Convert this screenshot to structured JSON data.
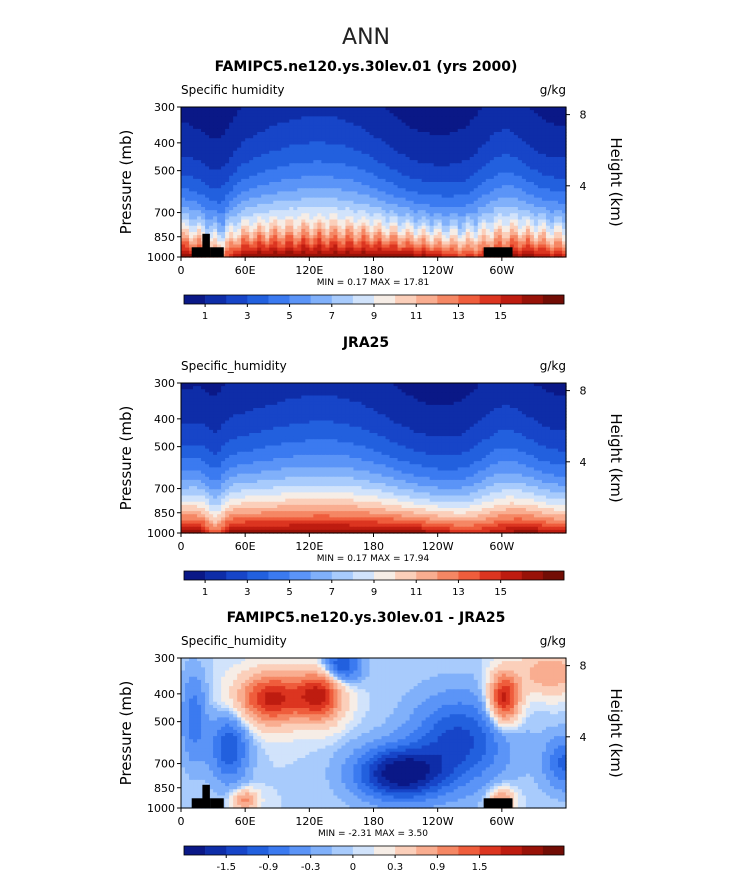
{
  "figure": {
    "title": "ANN"
  },
  "chart_data": [
    {
      "type": "heatmap",
      "title": "FAMIPC5.ne120.ys.30lev.01 (yrs 2000)",
      "var_label": "Specific humidity",
      "units": "g/kg",
      "ylabel": "Pressure (mb)",
      "ylabel_right": "Height (km)",
      "y_ticks": [
        "300",
        "400",
        "500",
        "700",
        "850",
        "1000"
      ],
      "y_tick_values": [
        300,
        400,
        500,
        700,
        850,
        1000
      ],
      "right_ticks": [
        "8",
        "4"
      ],
      "right_tick_values": [
        8,
        4
      ],
      "x_ticks": [
        "0",
        "60E",
        "120E",
        "180",
        "120W",
        "60W"
      ],
      "x_tick_values": [
        0,
        60,
        120,
        180,
        240,
        300
      ],
      "xlim": [
        0,
        360
      ],
      "ylim": [
        1000,
        300
      ],
      "stats": "MIN =     0.17   MAX =   17.81",
      "min": 0.17,
      "max": 17.81,
      "colorbar_labels": [
        "1",
        "3",
        "5",
        "7",
        "9",
        "11",
        "13",
        "15"
      ],
      "colorbar_levels": [
        0,
        1,
        2,
        3,
        4,
        5,
        6,
        7,
        8,
        9,
        10,
        11,
        12,
        13,
        14,
        15,
        16,
        17
      ],
      "colors": [
        "#0a1887",
        "#0e2da8",
        "#1745c8",
        "#2260de",
        "#3b7af0",
        "#5b94f7",
        "#80b0fa",
        "#a8cbfc",
        "#d1e3fb",
        "#f6ede6",
        "#fbcfba",
        "#f9ad90",
        "#f58764",
        "#ef5d3c",
        "#dc3520",
        "#be1c10",
        "#981208",
        "#720d05"
      ],
      "terrain": [
        {
          "lon0": 10,
          "lon1": 28,
          "p": 925
        },
        {
          "lon0": 20,
          "lon1": 27,
          "p": 830
        },
        {
          "lon0": 28,
          "lon1": 40,
          "p": 925
        },
        {
          "lon0": 283,
          "lon1": 310,
          "p": 925
        }
      ]
    },
    {
      "type": "heatmap",
      "title": "JRA25",
      "var_label": "Specific_humidity",
      "units": "g/kg",
      "ylabel": "Pressure (mb)",
      "ylabel_right": "Height (km)",
      "y_ticks": [
        "300",
        "400",
        "500",
        "700",
        "850",
        "1000"
      ],
      "y_tick_values": [
        300,
        400,
        500,
        700,
        850,
        1000
      ],
      "right_ticks": [
        "8",
        "4"
      ],
      "right_tick_values": [
        8,
        4
      ],
      "x_ticks": [
        "0",
        "60E",
        "120E",
        "180",
        "120W",
        "60W"
      ],
      "x_tick_values": [
        0,
        60,
        120,
        180,
        240,
        300
      ],
      "xlim": [
        0,
        360
      ],
      "ylim": [
        1000,
        300
      ],
      "stats": "MIN =     0.17   MAX =   17.94",
      "min": 0.17,
      "max": 17.94,
      "colorbar_labels": [
        "1",
        "3",
        "5",
        "7",
        "9",
        "11",
        "13",
        "15"
      ],
      "colorbar_levels": [
        0,
        1,
        2,
        3,
        4,
        5,
        6,
        7,
        8,
        9,
        10,
        11,
        12,
        13,
        14,
        15,
        16,
        17
      ],
      "colors": [
        "#0a1887",
        "#0e2da8",
        "#1745c8",
        "#2260de",
        "#3b7af0",
        "#5b94f7",
        "#80b0fa",
        "#a8cbfc",
        "#d1e3fb",
        "#f6ede6",
        "#fbcfba",
        "#f9ad90",
        "#f58764",
        "#ef5d3c",
        "#dc3520",
        "#be1c10",
        "#981208",
        "#720d05"
      ],
      "terrain": []
    },
    {
      "type": "heatmap",
      "title": "FAMIPC5.ne120.ys.30lev.01 - JRA25",
      "var_label": "Specific_humidity",
      "units": "g/kg",
      "ylabel": "Pressure (mb)",
      "ylabel_right": "Height (km)",
      "y_ticks": [
        "300",
        "400",
        "500",
        "700",
        "850",
        "1000"
      ],
      "y_tick_values": [
        300,
        400,
        500,
        700,
        850,
        1000
      ],
      "right_ticks": [
        "8",
        "4"
      ],
      "right_tick_values": [
        8,
        4
      ],
      "x_ticks": [
        "0",
        "60E",
        "120E",
        "180",
        "120W",
        "60W"
      ],
      "x_tick_values": [
        0,
        60,
        120,
        180,
        240,
        300
      ],
      "xlim": [
        0,
        360
      ],
      "ylim": [
        1000,
        300
      ],
      "stats": "MIN =    -2.31   MAX =    3.50",
      "min": -2.31,
      "max": 3.5,
      "colorbar_labels": [
        "-1.5",
        "-0.9",
        "-0.3",
        "0",
        "0.3",
        "0.9",
        "1.5"
      ],
      "colorbar_levels": [
        -2.1,
        -1.8,
        -1.5,
        -1.2,
        -0.9,
        -0.6,
        -0.3,
        -0.1,
        0,
        0.1,
        0.3,
        0.6,
        0.9,
        1.2,
        1.5,
        1.8,
        2.1,
        2.4
      ],
      "colors": [
        "#0a1887",
        "#0e2da8",
        "#1745c8",
        "#2260de",
        "#3b7af0",
        "#5b94f7",
        "#80b0fa",
        "#a8cbfc",
        "#d1e3fb",
        "#f6ede6",
        "#fbcfba",
        "#f9ad90",
        "#f58764",
        "#ef5d3c",
        "#dc3520",
        "#be1c10",
        "#981208",
        "#720d05"
      ],
      "terrain": [
        {
          "lon0": 10,
          "lon1": 28,
          "p": 925
        },
        {
          "lon0": 20,
          "lon1": 27,
          "p": 830
        },
        {
          "lon0": 28,
          "lon1": 40,
          "p": 925
        },
        {
          "lon0": 283,
          "lon1": 310,
          "p": 925
        }
      ]
    }
  ]
}
